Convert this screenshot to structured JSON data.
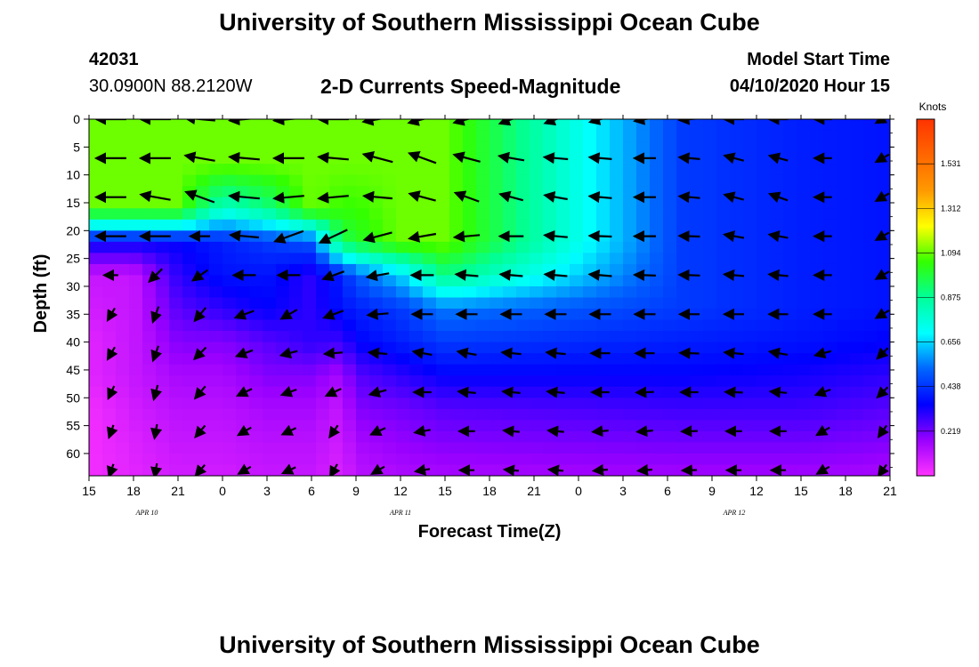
{
  "header": {
    "title": "University of Southern Mississippi Ocean Cube",
    "station_id": "42031",
    "coords": "30.0900N 88.2120W",
    "plot_title": "2-D Currents Speed-Magnitude",
    "model_start_label": "Model Start Time",
    "model_start_time": "04/10/2020 Hour 15"
  },
  "footer": {
    "title": "University of Southern Mississippi Ocean Cube"
  },
  "chart_data": {
    "type": "heatmap",
    "title": "2-D Currents Speed-Magnitude",
    "xlabel": "Forecast Time(Z)",
    "ylabel": "Depth (ft)",
    "x_ticks": [
      "15",
      "18",
      "21",
      "0",
      "3",
      "6",
      "9",
      "12",
      "15",
      "18",
      "21",
      "0",
      "3",
      "6",
      "9",
      "12",
      "15",
      "18",
      "21"
    ],
    "date_labels": [
      {
        "text": "APR 10",
        "tick_index": 1.3
      },
      {
        "text": "APR 11",
        "tick_index": 7
      },
      {
        "text": "APR 12",
        "tick_index": 14.5
      }
    ],
    "y_ticks": [
      0,
      5,
      10,
      15,
      20,
      25,
      30,
      35,
      40,
      45,
      50,
      55,
      60
    ],
    "ylim": [
      0,
      64
    ],
    "x_hours_range": [
      0,
      54
    ],
    "colorbar": {
      "unit": "Knots",
      "min": 0.0,
      "max": 1.75,
      "tick_values": [
        0.219,
        0.438,
        0.656,
        0.875,
        1.094,
        1.312,
        1.531
      ],
      "tick_labels": [
        "0.219",
        "0.438",
        "0.656",
        "0.875",
        "1.094",
        "1.312",
        "1.531"
      ],
      "colors": [
        "#ff33ff",
        "#9900ff",
        "#0000ff",
        "#0066ff",
        "#00ffff",
        "#00ff99",
        "#33ff00",
        "#ffff00",
        "#ff9900",
        "#ff6600",
        "#ff3300"
      ]
    },
    "speed_columns_hours": [
      0,
      3,
      6,
      7,
      9,
      12,
      15,
      18,
      21,
      24,
      27,
      30,
      30.5,
      33,
      36,
      39,
      42,
      45,
      48,
      51,
      54
    ],
    "speed_rows_depth": [
      0,
      8,
      16,
      22,
      28,
      34,
      40,
      46,
      52,
      58,
      64
    ],
    "speed_grid": [
      [
        1.1,
        1.1,
        1.1,
        1.1,
        1.1,
        1.1,
        1.1,
        1.1,
        1.1,
        1.1,
        0.45,
        0.4,
        0.38
      ],
      [
        1.1,
        1.1,
        1.1,
        1.1,
        1.1,
        1.1,
        1.1,
        1.1,
        1.1,
        1.1,
        0.45,
        0.4,
        0.38
      ],
      [
        1.1,
        1.1,
        1.1,
        0.8,
        0.9,
        1.1,
        1.05,
        1.05,
        1.1,
        1.1,
        0.45,
        0.4,
        0.38
      ],
      [
        0.35,
        0.35,
        0.35,
        0.4,
        0.45,
        0.5,
        0.95,
        1.0,
        1.1,
        1.1,
        0.45,
        0.4,
        0.38
      ],
      [
        0.1,
        0.1,
        0.3,
        0.38,
        0.38,
        0.3,
        0.4,
        0.5,
        0.65,
        0.9,
        0.45,
        0.4,
        0.38
      ],
      [
        0.08,
        0.1,
        0.25,
        0.3,
        0.35,
        0.3,
        0.38,
        0.4,
        0.45,
        0.55,
        0.45,
        0.4,
        0.38
      ],
      [
        0.05,
        0.1,
        0.2,
        0.2,
        0.25,
        0.3,
        0.28,
        0.35,
        0.4,
        0.45,
        0.4,
        0.38,
        0.35
      ],
      [
        0.05,
        0.1,
        0.15,
        0.15,
        0.2,
        0.2,
        0.15,
        0.25,
        0.3,
        0.35,
        0.35,
        0.33,
        0.3
      ],
      [
        0.02,
        0.08,
        0.12,
        0.12,
        0.15,
        0.15,
        0.1,
        0.2,
        0.22,
        0.25,
        0.28,
        0.28,
        0.25
      ],
      [
        0.02,
        0.06,
        0.1,
        0.1,
        0.12,
        0.12,
        0.08,
        0.15,
        0.18,
        0.2,
        0.22,
        0.22,
        0.2
      ],
      [
        0.02,
        0.05,
        0.08,
        0.08,
        0.1,
        0.1,
        0.06,
        0.12,
        0.14,
        0.15,
        0.16,
        0.16,
        0.15
      ]
    ],
    "speed_grid_columns_hours": [
      0,
      3,
      6,
      9,
      12,
      15,
      17,
      18,
      21,
      24,
      40,
      48,
      54
    ],
    "arrow_depths": [
      0,
      7,
      14,
      21,
      28,
      35,
      42,
      49,
      56,
      63
    ],
    "arrow_times_hours": [
      1.5,
      4.5,
      7.5,
      10.5,
      13.5,
      16.5,
      19.5,
      22.5,
      25.5,
      28.5,
      31.5,
      34.5,
      37.5,
      40.5,
      43.5,
      46.5,
      49.5,
      53.5
    ],
    "arrow_directions_deg": [
      [
        180,
        180,
        175,
        185,
        185,
        180,
        190,
        195,
        195,
        200,
        200,
        195,
        190,
        185,
        180,
        180,
        180,
        210
      ],
      [
        180,
        180,
        170,
        175,
        180,
        175,
        165,
        160,
        165,
        170,
        175,
        175,
        180,
        175,
        165,
        165,
        180,
        210
      ],
      [
        180,
        170,
        160,
        175,
        185,
        185,
        175,
        165,
        160,
        165,
        170,
        175,
        180,
        175,
        165,
        160,
        180,
        210
      ],
      [
        180,
        180,
        180,
        175,
        200,
        205,
        195,
        190,
        185,
        180,
        175,
        178,
        180,
        178,
        170,
        170,
        180,
        210
      ],
      [
        180,
        225,
        215,
        180,
        180,
        200,
        190,
        180,
        175,
        175,
        175,
        175,
        178,
        178,
        175,
        175,
        180,
        210
      ],
      [
        240,
        250,
        230,
        200,
        210,
        200,
        185,
        180,
        180,
        180,
        180,
        180,
        180,
        180,
        180,
        180,
        180,
        210
      ],
      [
        240,
        250,
        225,
        200,
        195,
        185,
        175,
        170,
        170,
        175,
        175,
        180,
        180,
        178,
        175,
        170,
        195,
        225
      ],
      [
        245,
        255,
        230,
        205,
        200,
        205,
        195,
        180,
        175,
        175,
        175,
        180,
        182,
        180,
        178,
        175,
        200,
        225
      ],
      [
        250,
        260,
        230,
        210,
        205,
        235,
        205,
        190,
        180,
        175,
        175,
        185,
        185,
        182,
        180,
        180,
        210,
        235
      ],
      [
        250,
        260,
        230,
        210,
        205,
        240,
        210,
        190,
        180,
        175,
        175,
        185,
        185,
        182,
        180,
        180,
        210,
        235
      ]
    ],
    "arrow_magnitudes_knots": [
      [
        1.1,
        1.1,
        1.1,
        1.1,
        1.1,
        1.1,
        1.1,
        1.0,
        0.9,
        0.8,
        0.7,
        0.6,
        0.55,
        0.5,
        0.45,
        0.4,
        0.3,
        0.15
      ],
      [
        1.1,
        1.1,
        1.1,
        1.1,
        1.1,
        1.1,
        1.1,
        1.0,
        0.9,
        0.8,
        0.7,
        0.6,
        0.55,
        0.5,
        0.45,
        0.4,
        0.3,
        0.15
      ],
      [
        1.1,
        1.1,
        1.1,
        1.1,
        1.1,
        1.1,
        1.0,
        0.9,
        0.8,
        0.7,
        0.65,
        0.6,
        0.55,
        0.5,
        0.45,
        0.4,
        0.3,
        0.15
      ],
      [
        1.1,
        1.1,
        0.45,
        1.0,
        1.1,
        1.1,
        1.0,
        0.9,
        0.8,
        0.7,
        0.65,
        0.6,
        0.55,
        0.5,
        0.45,
        0.4,
        0.3,
        0.15
      ],
      [
        0.1,
        0.35,
        0.35,
        0.6,
        0.6,
        0.6,
        0.6,
        0.6,
        0.6,
        0.6,
        0.6,
        0.6,
        0.55,
        0.5,
        0.45,
        0.4,
        0.3,
        0.15
      ],
      [
        0.1,
        0.25,
        0.3,
        0.45,
        0.35,
        0.5,
        0.5,
        0.5,
        0.5,
        0.5,
        0.5,
        0.5,
        0.5,
        0.45,
        0.45,
        0.4,
        0.3,
        0.15
      ],
      [
        0.1,
        0.2,
        0.25,
        0.3,
        0.28,
        0.35,
        0.35,
        0.4,
        0.4,
        0.4,
        0.4,
        0.4,
        0.4,
        0.4,
        0.4,
        0.35,
        0.25,
        0.15
      ],
      [
        0.08,
        0.15,
        0.2,
        0.22,
        0.2,
        0.25,
        0.28,
        0.3,
        0.3,
        0.3,
        0.3,
        0.3,
        0.3,
        0.3,
        0.3,
        0.25,
        0.2,
        0.12
      ],
      [
        0.05,
        0.1,
        0.15,
        0.15,
        0.15,
        0.12,
        0.2,
        0.2,
        0.2,
        0.2,
        0.2,
        0.2,
        0.2,
        0.2,
        0.2,
        0.2,
        0.15,
        0.1
      ],
      [
        0.04,
        0.08,
        0.1,
        0.1,
        0.1,
        0.1,
        0.12,
        0.12,
        0.12,
        0.12,
        0.12,
        0.12,
        0.12,
        0.12,
        0.12,
        0.12,
        0.1,
        0.08
      ]
    ]
  }
}
